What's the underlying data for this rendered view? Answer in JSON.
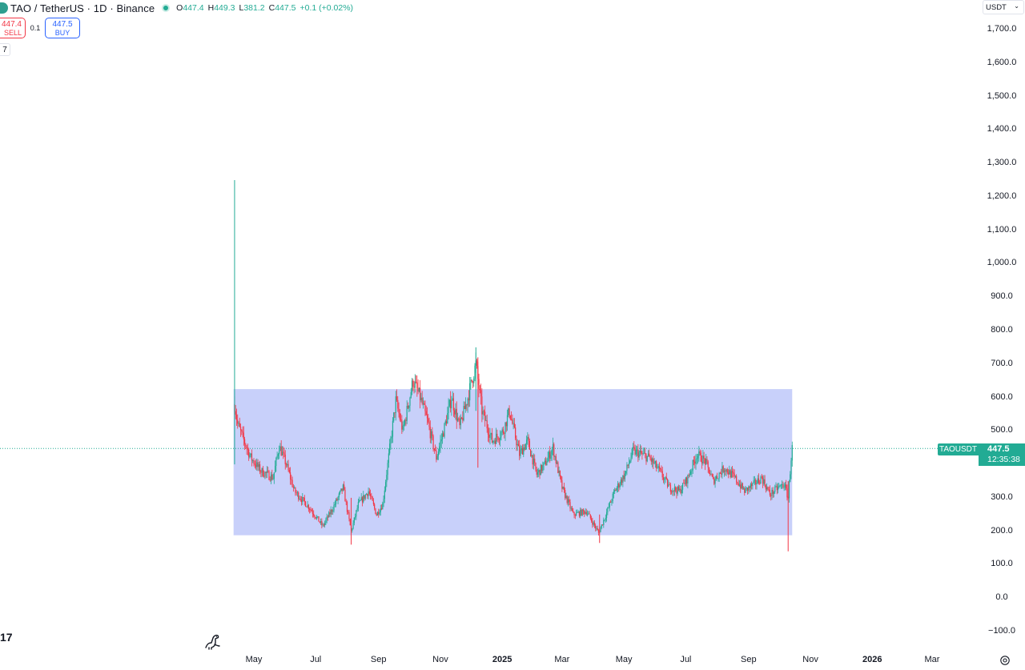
{
  "header": {
    "symbol_title": "TAO / TetherUS · 1D · Binance",
    "ohlc": {
      "o_label": "O",
      "o": "447.4",
      "h_label": "H",
      "h": "449.3",
      "l_label": "L",
      "l": "381.2",
      "c_label": "C",
      "c": "447.5",
      "change": "+0.1 (+0.02%)"
    }
  },
  "trade": {
    "sell_price": "447.4",
    "sell_label": "SELL",
    "spread": "0.1",
    "buy_price": "447.5",
    "buy_label": "BUY",
    "quantity": "7"
  },
  "currency": {
    "label": "USDT"
  },
  "last_price": {
    "symbol": "TAOUSDT",
    "price": "447.5",
    "countdown": "12:35:38"
  },
  "brand": {
    "logo_text": "17"
  },
  "colors": {
    "up": "#22ab94",
    "down": "#f23645",
    "range_box": "#c8d0fa",
    "price_line": "#22ab94"
  },
  "chart_data": {
    "type": "candlestick",
    "ylim": [
      -100,
      1750
    ],
    "y_ticks": [
      "1,700.0",
      "1,600.0",
      "1,500.0",
      "1,400.0",
      "1,300.0",
      "1,200.0",
      "1,100.0",
      "1,000.0",
      "900.0",
      "800.0",
      "700.0",
      "600.0",
      "500.0",
      "400.0",
      "300.0",
      "200.0",
      "100.0",
      "0.0",
      "−100.0"
    ],
    "y_tick_values": [
      1700,
      1600,
      1500,
      1400,
      1300,
      1200,
      1100,
      1000,
      900,
      800,
      700,
      600,
      500,
      400,
      300,
      200,
      100,
      0,
      -100
    ],
    "x_ticks": [
      "May",
      "Jul",
      "Sep",
      "Nov",
      "2025",
      "Mar",
      "May",
      "Jul",
      "Sep",
      "Nov",
      "2026",
      "Mar"
    ],
    "x_tick_dates": [
      "2024-05-01",
      "2024-07-01",
      "2024-09-01",
      "2024-11-01",
      "2025-01-01",
      "2025-03-01",
      "2025-05-01",
      "2025-07-01",
      "2025-09-01",
      "2025-11-01",
      "2026-01-01",
      "2026-03-01"
    ],
    "x_tick_bold": [
      false,
      false,
      false,
      false,
      true,
      false,
      false,
      false,
      false,
      false,
      true,
      false
    ],
    "x_range": [
      "2024-04-01",
      "2026-04-08"
    ],
    "last_price": 447.5,
    "range_box": {
      "start": "2024-04-11",
      "end": "2025-10-14",
      "low": 188,
      "high": 625
    },
    "price_path": [
      {
        "date": "2024-04-12",
        "price": 580
      },
      {
        "date": "2024-04-15",
        "price": 520
      },
      {
        "date": "2024-04-20",
        "price": 480
      },
      {
        "date": "2024-04-28",
        "price": 420
      },
      {
        "date": "2024-05-08",
        "price": 380
      },
      {
        "date": "2024-05-20",
        "price": 360
      },
      {
        "date": "2024-05-26",
        "price": 455
      },
      {
        "date": "2024-06-02",
        "price": 400
      },
      {
        "date": "2024-06-10",
        "price": 320
      },
      {
        "date": "2024-06-25",
        "price": 270
      },
      {
        "date": "2024-07-08",
        "price": 215
      },
      {
        "date": "2024-07-18",
        "price": 270
      },
      {
        "date": "2024-07-28",
        "price": 330
      },
      {
        "date": "2024-08-05",
        "price": 200
      },
      {
        "date": "2024-08-12",
        "price": 280
      },
      {
        "date": "2024-08-22",
        "price": 320
      },
      {
        "date": "2024-08-30",
        "price": 250
      },
      {
        "date": "2024-09-05",
        "price": 280
      },
      {
        "date": "2024-09-18",
        "price": 590
      },
      {
        "date": "2024-09-25",
        "price": 500
      },
      {
        "date": "2024-10-05",
        "price": 650
      },
      {
        "date": "2024-10-12",
        "price": 600
      },
      {
        "date": "2024-10-20",
        "price": 520
      },
      {
        "date": "2024-10-28",
        "price": 420
      },
      {
        "date": "2024-11-05",
        "price": 510
      },
      {
        "date": "2024-11-12",
        "price": 600
      },
      {
        "date": "2024-11-20",
        "price": 510
      },
      {
        "date": "2024-11-28",
        "price": 600
      },
      {
        "date": "2024-12-06",
        "price": 700
      },
      {
        "date": "2024-12-12",
        "price": 560
      },
      {
        "date": "2024-12-22",
        "price": 470
      },
      {
        "date": "2025-01-02",
        "price": 500
      },
      {
        "date": "2025-01-08",
        "price": 560
      },
      {
        "date": "2025-01-18",
        "price": 430
      },
      {
        "date": "2025-01-26",
        "price": 470
      },
      {
        "date": "2025-02-04",
        "price": 370
      },
      {
        "date": "2025-02-12",
        "price": 400
      },
      {
        "date": "2025-02-20",
        "price": 450
      },
      {
        "date": "2025-03-01",
        "price": 330
      },
      {
        "date": "2025-03-12",
        "price": 250
      },
      {
        "date": "2025-03-25",
        "price": 260
      },
      {
        "date": "2025-04-06",
        "price": 195
      },
      {
        "date": "2025-04-12",
        "price": 240
      },
      {
        "date": "2025-04-22",
        "price": 320
      },
      {
        "date": "2025-05-02",
        "price": 370
      },
      {
        "date": "2025-05-10",
        "price": 440
      },
      {
        "date": "2025-05-18",
        "price": 430
      },
      {
        "date": "2025-05-26",
        "price": 420
      },
      {
        "date": "2025-06-05",
        "price": 380
      },
      {
        "date": "2025-06-15",
        "price": 330
      },
      {
        "date": "2025-06-25",
        "price": 320
      },
      {
        "date": "2025-07-03",
        "price": 360
      },
      {
        "date": "2025-07-12",
        "price": 430
      },
      {
        "date": "2025-07-20",
        "price": 410
      },
      {
        "date": "2025-07-28",
        "price": 350
      },
      {
        "date": "2025-08-08",
        "price": 390
      },
      {
        "date": "2025-08-18",
        "price": 360
      },
      {
        "date": "2025-08-28",
        "price": 320
      },
      {
        "date": "2025-09-06",
        "price": 340
      },
      {
        "date": "2025-09-14",
        "price": 360
      },
      {
        "date": "2025-09-22",
        "price": 310
      },
      {
        "date": "2025-09-30",
        "price": 330
      },
      {
        "date": "2025-10-06",
        "price": 340
      },
      {
        "date": "2025-10-10",
        "price": 300
      },
      {
        "date": "2025-10-13",
        "price": 420
      },
      {
        "date": "2025-10-14",
        "price": 447.5
      }
    ],
    "spike_wicks": [
      {
        "date": "2024-04-12",
        "low": 400,
        "high": 1250
      },
      {
        "date": "2024-08-05",
        "low": 160,
        "high": 300
      },
      {
        "date": "2024-12-06",
        "low": 560,
        "high": 750
      },
      {
        "date": "2024-12-08",
        "low": 390,
        "high": 720
      },
      {
        "date": "2025-04-07",
        "low": 165,
        "high": 250
      },
      {
        "date": "2025-10-10",
        "low": 140,
        "high": 350
      }
    ]
  }
}
